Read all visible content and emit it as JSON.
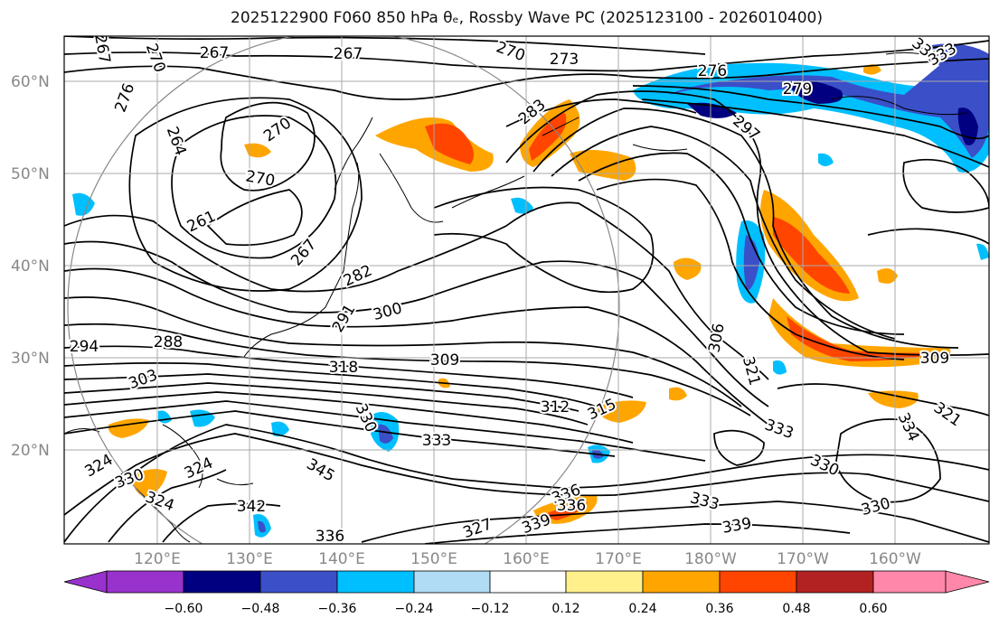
{
  "title": "2025122900 F060 850 hPa θₑ, Rossby Wave PC (2025123100 - 2026010400)",
  "map": {
    "lat_ticks": [
      "60°N",
      "50°N",
      "40°N",
      "30°N",
      "20°N"
    ],
    "lon_ticks": [
      "120°E",
      "130°E",
      "140°E",
      "150°E",
      "160°E",
      "170°E",
      "180°W",
      "170°W",
      "160°W"
    ],
    "contour_labels": [
      "267",
      "267",
      "270",
      "273",
      "276",
      "279",
      "276",
      "270",
      "267",
      "264",
      "270",
      "270",
      "261",
      "267",
      "282",
      "283",
      "297",
      "306",
      "291",
      "300",
      "294",
      "288",
      "303",
      "318",
      "309",
      "309",
      "312",
      "315",
      "321",
      "324",
      "330",
      "333",
      "333",
      "324",
      "342",
      "345",
      "336",
      "327",
      "336",
      "339",
      "333",
      "330",
      "336",
      "330",
      "339",
      "321",
      "334",
      "330",
      "324",
      "330",
      "333"
    ]
  },
  "colorbar": {
    "ticks": [
      "−0.60",
      "−0.48",
      "−0.36",
      "−0.24",
      "−0.12",
      "0.12",
      "0.24",
      "0.36",
      "0.48",
      "0.60"
    ],
    "colors": [
      "#9932cc",
      "#000080",
      "#3a4fc8",
      "#00bfff",
      "#b0dcf5",
      "#ffffff",
      "#fff08c",
      "#ffa500",
      "#ff4500",
      "#b22222",
      "#ff88aa"
    ]
  }
}
